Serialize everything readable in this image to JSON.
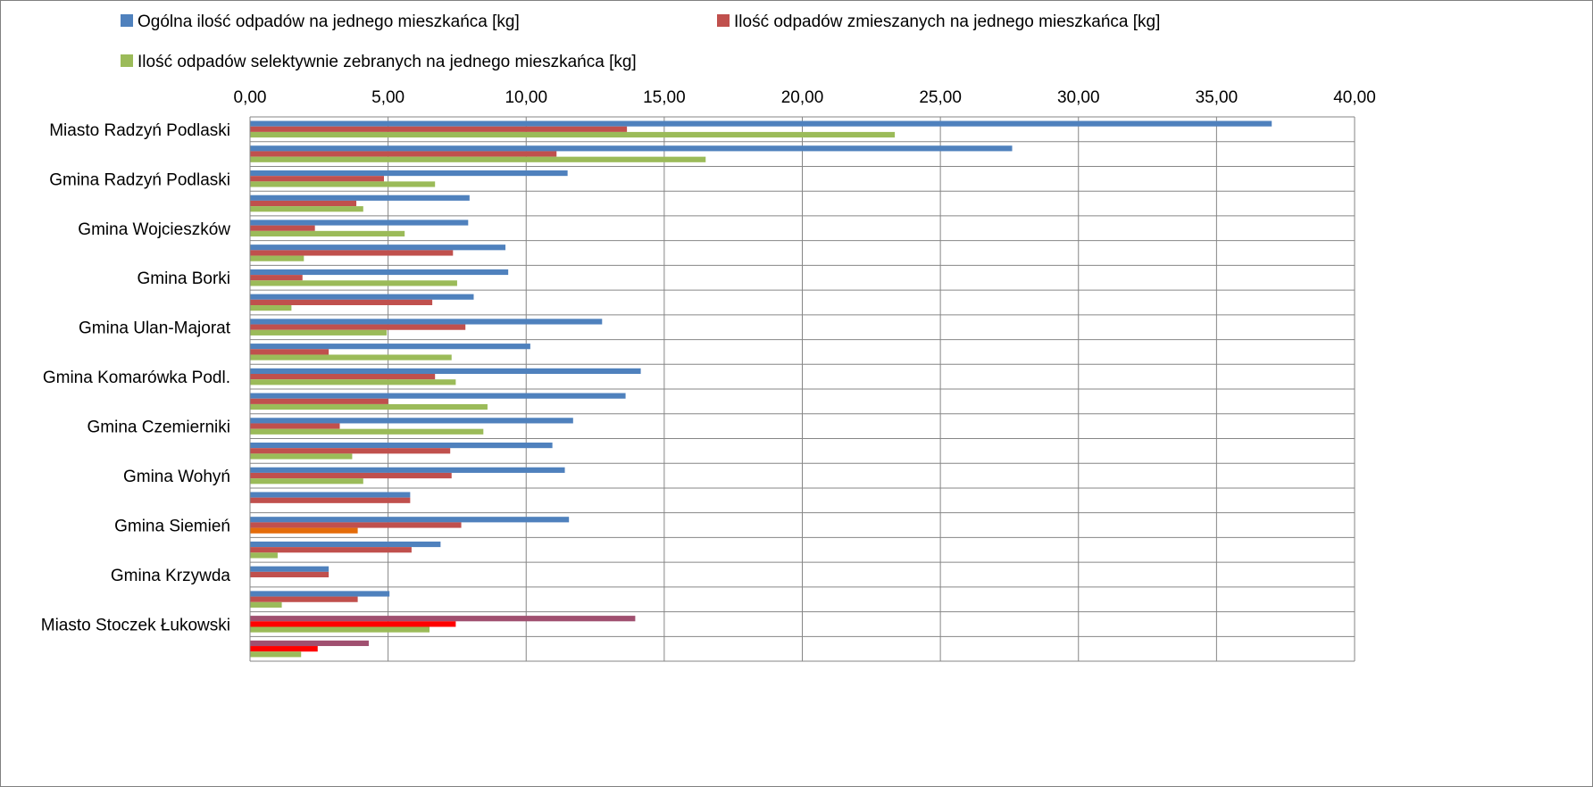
{
  "chart_data": {
    "type": "bar",
    "orientation": "horizontal",
    "xlim": [
      0,
      40
    ],
    "x_ticks": [
      "0,00",
      "5,00",
      "10,00",
      "15,00",
      "20,00",
      "25,00",
      "30,00",
      "35,00",
      "40,00"
    ],
    "grid": true,
    "legend_position": "top",
    "category_labels": [
      "Miasto Radzyń Podlaski",
      "",
      "Gmina Radzyń Podlaski",
      "",
      "Gmina Wojcieszków",
      "",
      "Gmina Borki",
      "",
      "Gmina Ulan-Majorat",
      "",
      "Gmina Komarówka Podl.",
      "",
      "Gmina Czemierniki",
      "",
      "Gmina Wohyń",
      "",
      "Gmina Siemień",
      "",
      "Gmina Krzywda",
      "",
      "Miasto Stoczek Łukowski",
      ""
    ],
    "series": [
      {
        "name": "Ogólna ilość odpadów na jednego mieszkańca [kg]",
        "color": "#4F81BD",
        "values": [
          37.0,
          27.6,
          11.5,
          7.95,
          7.9,
          9.25,
          9.35,
          8.1,
          12.75,
          10.15,
          14.15,
          13.6,
          11.7,
          10.95,
          11.4,
          5.8,
          11.55,
          6.9,
          2.85,
          5.05,
          13.95,
          4.3
        ]
      },
      {
        "name": "Ilość odpadów zmieszanych na jednego mieszkańca [kg]",
        "color": "#C0504D",
        "values": [
          13.65,
          11.1,
          4.85,
          3.85,
          2.35,
          7.35,
          1.9,
          6.6,
          7.8,
          2.85,
          6.7,
          5.0,
          3.25,
          7.25,
          7.3,
          5.8,
          7.65,
          5.85,
          2.85,
          3.9,
          7.45,
          2.45
        ]
      },
      {
        "name": "Ilość odpadów selektywnie zebranych na jednego mieszkańca [kg]",
        "color": "#9BBB59",
        "values": [
          23.35,
          16.5,
          6.7,
          4.1,
          5.6,
          1.95,
          7.5,
          1.5,
          4.95,
          7.3,
          7.45,
          8.6,
          8.45,
          3.7,
          4.1,
          0.0,
          3.9,
          1.0,
          0.0,
          1.15,
          6.5,
          1.85
        ]
      }
    ],
    "bar_color_overrides": [
      {
        "row": 16,
        "series": 2,
        "color": "#E46C0A"
      },
      {
        "row": 20,
        "series": 0,
        "color": "#A05070"
      },
      {
        "row": 20,
        "series": 1,
        "color": "#FF0000"
      },
      {
        "row": 21,
        "series": 0,
        "color": "#A05070"
      },
      {
        "row": 21,
        "series": 1,
        "color": "#FF0000"
      }
    ]
  }
}
